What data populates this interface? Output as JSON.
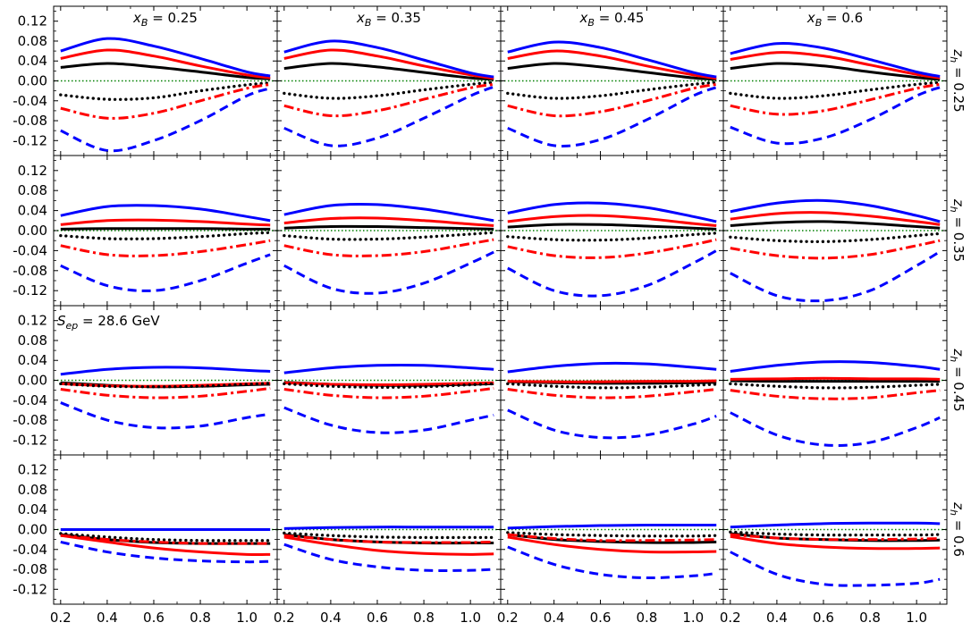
{
  "chart_data": {
    "type": "line",
    "grid": false,
    "layout": "4x4 grid of panels; columns x_B, rows z_h; shared x and y axes",
    "xlim": [
      0.17,
      1.13
    ],
    "ylim": [
      -0.15,
      0.15
    ],
    "x_ticks": [
      "0.2",
      "0.4",
      "0.6",
      "0.8",
      "1.0"
    ],
    "y_ticks": [
      "0.12",
      "0.08",
      "0.04",
      "0.00",
      "-0.04",
      "-0.08",
      "-0.12"
    ],
    "x_ticks_values": [
      0.2,
      0.4,
      0.6,
      0.8,
      1.0
    ],
    "y_ticks_values": [
      0.12,
      0.08,
      0.04,
      0.0,
      -0.04,
      -0.08,
      -0.12
    ],
    "col_labels": [
      {
        "sym": "x",
        "sub": "B",
        "val": " = 0.25"
      },
      {
        "sym": "x",
        "sub": "B",
        "val": " = 0.35"
      },
      {
        "sym": "x",
        "sub": "B",
        "val": " = 0.45"
      },
      {
        "sym": "x",
        "sub": "B",
        "val": " = 0.6"
      }
    ],
    "row_labels": [
      {
        "sym": "z",
        "sub": "h",
        "val": " = 0.25"
      },
      {
        "sym": "z",
        "sub": "h",
        "val": " = 0.35"
      },
      {
        "sym": "z",
        "sub": "h",
        "val": " = 0.45"
      },
      {
        "sym": "z",
        "sub": "h",
        "val": " = 0.6"
      }
    ],
    "annotation": {
      "sym": "S",
      "sub": "ep",
      "val": " = 28.6 GeV",
      "panel": [
        2,
        0
      ]
    },
    "zero_line": {
      "color": "#008000",
      "style": "dotted"
    },
    "series_styles": [
      {
        "key": "black_solid",
        "color": "#000000",
        "dash": "solid"
      },
      {
        "key": "red_solid",
        "color": "#ff0000",
        "dash": "solid"
      },
      {
        "key": "blue_solid",
        "color": "#0000ff",
        "dash": "solid"
      },
      {
        "key": "black_dotted",
        "color": "#000000",
        "dash": "dotted"
      },
      {
        "key": "red_dashdot",
        "color": "#ff0000",
        "dash": "dashdot"
      },
      {
        "key": "blue_dashed",
        "color": "#0000ff",
        "dash": "dashed"
      }
    ],
    "x": [
      0.2,
      0.4,
      0.6,
      0.8,
      1.0,
      1.1
    ],
    "panels": [
      [
        {
          "black_solid": [
            0.027,
            0.035,
            0.028,
            0.018,
            0.007,
            0.004
          ],
          "red_solid": [
            0.045,
            0.062,
            0.05,
            0.03,
            0.012,
            0.006
          ],
          "blue_solid": [
            0.06,
            0.085,
            0.07,
            0.045,
            0.018,
            0.01
          ],
          "black_dotted": [
            -0.028,
            -0.037,
            -0.034,
            -0.02,
            -0.008,
            -0.004
          ],
          "red_dashdot": [
            -0.055,
            -0.075,
            -0.065,
            -0.04,
            -0.015,
            -0.007
          ],
          "blue_dashed": [
            -0.1,
            -0.14,
            -0.12,
            -0.08,
            -0.03,
            -0.015
          ]
        },
        {
          "black_solid": [
            0.025,
            0.035,
            0.028,
            0.017,
            0.006,
            0.003
          ],
          "red_solid": [
            0.045,
            0.062,
            0.05,
            0.03,
            0.012,
            0.005
          ],
          "blue_solid": [
            0.058,
            0.08,
            0.067,
            0.042,
            0.016,
            0.008
          ],
          "black_dotted": [
            -0.025,
            -0.035,
            -0.03,
            -0.018,
            -0.007,
            -0.003
          ],
          "red_dashdot": [
            -0.05,
            -0.07,
            -0.06,
            -0.037,
            -0.014,
            -0.007
          ],
          "blue_dashed": [
            -0.095,
            -0.13,
            -0.115,
            -0.075,
            -0.03,
            -0.012
          ]
        },
        {
          "black_solid": [
            0.025,
            0.035,
            0.028,
            0.017,
            0.006,
            0.003
          ],
          "red_solid": [
            0.045,
            0.06,
            0.05,
            0.03,
            0.012,
            0.005
          ],
          "blue_solid": [
            0.058,
            0.078,
            0.067,
            0.043,
            0.017,
            0.008
          ],
          "black_dotted": [
            -0.025,
            -0.035,
            -0.03,
            -0.018,
            -0.007,
            -0.003
          ],
          "red_dashdot": [
            -0.05,
            -0.07,
            -0.062,
            -0.04,
            -0.015,
            -0.007
          ],
          "blue_dashed": [
            -0.095,
            -0.13,
            -0.118,
            -0.078,
            -0.03,
            -0.013
          ]
        },
        {
          "black_solid": [
            0.025,
            0.035,
            0.03,
            0.018,
            0.007,
            0.003
          ],
          "red_solid": [
            0.043,
            0.057,
            0.05,
            0.032,
            0.013,
            0.006
          ],
          "blue_solid": [
            0.055,
            0.075,
            0.066,
            0.043,
            0.018,
            0.009
          ],
          "black_dotted": [
            -0.025,
            -0.035,
            -0.03,
            -0.018,
            -0.007,
            -0.003
          ],
          "red_dashdot": [
            -0.05,
            -0.067,
            -0.06,
            -0.038,
            -0.015,
            -0.007
          ],
          "blue_dashed": [
            -0.093,
            -0.125,
            -0.115,
            -0.078,
            -0.03,
            -0.013
          ]
        }
      ],
      [
        {
          "black_solid": [
            0.003,
            0.004,
            0.004,
            0.004,
            0.003,
            0.003
          ],
          "red_solid": [
            0.012,
            0.02,
            0.021,
            0.018,
            0.013,
            0.011
          ],
          "blue_solid": [
            0.03,
            0.048,
            0.05,
            0.043,
            0.028,
            0.02
          ],
          "black_dotted": [
            -0.01,
            -0.016,
            -0.016,
            -0.012,
            -0.006,
            -0.004
          ],
          "red_dashdot": [
            -0.03,
            -0.048,
            -0.05,
            -0.042,
            -0.028,
            -0.02
          ],
          "blue_dashed": [
            -0.07,
            -0.11,
            -0.12,
            -0.1,
            -0.065,
            -0.048
          ]
        },
        {
          "black_solid": [
            0.005,
            0.008,
            0.008,
            0.006,
            0.004,
            0.003
          ],
          "red_solid": [
            0.015,
            0.024,
            0.025,
            0.02,
            0.013,
            0.01
          ],
          "blue_solid": [
            0.032,
            0.05,
            0.052,
            0.043,
            0.028,
            0.02
          ],
          "black_dotted": [
            -0.01,
            -0.017,
            -0.017,
            -0.013,
            -0.007,
            -0.004
          ],
          "red_dashdot": [
            -0.03,
            -0.048,
            -0.05,
            -0.042,
            -0.026,
            -0.018
          ],
          "blue_dashed": [
            -0.07,
            -0.115,
            -0.125,
            -0.105,
            -0.065,
            -0.043
          ]
        },
        {
          "black_solid": [
            0.007,
            0.012,
            0.012,
            0.009,
            0.005,
            0.003
          ],
          "red_solid": [
            0.018,
            0.028,
            0.03,
            0.024,
            0.014,
            0.01
          ],
          "blue_solid": [
            0.035,
            0.052,
            0.055,
            0.046,
            0.028,
            0.018
          ],
          "black_dotted": [
            -0.012,
            -0.018,
            -0.019,
            -0.015,
            -0.008,
            -0.005
          ],
          "red_dashdot": [
            -0.032,
            -0.05,
            -0.054,
            -0.045,
            -0.028,
            -0.018
          ],
          "blue_dashed": [
            -0.075,
            -0.12,
            -0.13,
            -0.11,
            -0.065,
            -0.04
          ]
        },
        {
          "black_solid": [
            0.01,
            0.016,
            0.018,
            0.014,
            0.008,
            0.005
          ],
          "red_solid": [
            0.023,
            0.034,
            0.036,
            0.029,
            0.018,
            0.012
          ],
          "blue_solid": [
            0.038,
            0.055,
            0.06,
            0.05,
            0.03,
            0.018
          ],
          "black_dotted": [
            -0.013,
            -0.02,
            -0.022,
            -0.018,
            -0.01,
            -0.006
          ],
          "red_dashdot": [
            -0.035,
            -0.05,
            -0.055,
            -0.048,
            -0.03,
            -0.02
          ],
          "blue_dashed": [
            -0.085,
            -0.13,
            -0.14,
            -0.12,
            -0.07,
            -0.042
          ]
        }
      ],
      [
        {
          "black_solid": [
            -0.005,
            -0.01,
            -0.013,
            -0.012,
            -0.009,
            -0.008
          ],
          "red_solid": [
            -0.007,
            -0.011,
            -0.012,
            -0.01,
            -0.007,
            -0.006
          ],
          "blue_solid": [
            0.012,
            0.022,
            0.026,
            0.025,
            0.02,
            0.018
          ],
          "black_dotted": [
            -0.007,
            -0.012,
            -0.013,
            -0.012,
            -0.008,
            -0.006
          ],
          "red_dashdot": [
            -0.018,
            -0.03,
            -0.035,
            -0.032,
            -0.022,
            -0.016
          ],
          "blue_dashed": [
            -0.045,
            -0.08,
            -0.095,
            -0.092,
            -0.075,
            -0.068
          ]
        },
        {
          "black_solid": [
            -0.004,
            -0.008,
            -0.01,
            -0.01,
            -0.008,
            -0.007
          ],
          "red_solid": [
            -0.005,
            -0.008,
            -0.009,
            -0.008,
            -0.006,
            -0.005
          ],
          "blue_solid": [
            0.015,
            0.025,
            0.03,
            0.03,
            0.025,
            0.022
          ],
          "black_dotted": [
            -0.007,
            -0.012,
            -0.014,
            -0.013,
            -0.009,
            -0.007
          ],
          "red_dashdot": [
            -0.018,
            -0.03,
            -0.035,
            -0.032,
            -0.022,
            -0.016
          ],
          "blue_dashed": [
            -0.055,
            -0.09,
            -0.105,
            -0.1,
            -0.08,
            -0.07
          ]
        },
        {
          "black_solid": [
            -0.003,
            -0.005,
            -0.006,
            -0.006,
            -0.005,
            -0.004
          ],
          "red_solid": [
            -0.002,
            -0.003,
            -0.003,
            -0.002,
            -0.002,
            -0.001
          ],
          "blue_solid": [
            0.017,
            0.028,
            0.034,
            0.033,
            0.026,
            0.022
          ],
          "black_dotted": [
            -0.007,
            -0.012,
            -0.015,
            -0.014,
            -0.01,
            -0.008
          ],
          "red_dashdot": [
            -0.018,
            -0.03,
            -0.035,
            -0.032,
            -0.023,
            -0.018
          ],
          "blue_dashed": [
            -0.06,
            -0.1,
            -0.115,
            -0.11,
            -0.088,
            -0.072
          ]
        },
        {
          "black_solid": [
            -0.001,
            -0.002,
            -0.002,
            -0.002,
            -0.002,
            -0.002
          ],
          "red_solid": [
            0.002,
            0.003,
            0.004,
            0.003,
            0.003,
            0.002
          ],
          "blue_solid": [
            0.018,
            0.03,
            0.037,
            0.036,
            0.028,
            0.022
          ],
          "black_dotted": [
            -0.007,
            -0.012,
            -0.015,
            -0.014,
            -0.01,
            -0.008
          ],
          "red_dashdot": [
            -0.02,
            -0.032,
            -0.037,
            -0.035,
            -0.025,
            -0.02
          ],
          "blue_dashed": [
            -0.065,
            -0.11,
            -0.13,
            -0.125,
            -0.095,
            -0.075
          ]
        }
      ],
      [
        {
          "black_solid": [
            -0.01,
            -0.02,
            -0.026,
            -0.028,
            -0.028,
            -0.028
          ],
          "red_solid": [
            -0.012,
            -0.025,
            -0.037,
            -0.045,
            -0.05,
            -0.05
          ],
          "blue_solid": [
            0.0,
            0.0,
            0.0,
            0.0,
            0.0,
            0.0
          ],
          "black_dotted": [
            -0.008,
            -0.015,
            -0.02,
            -0.022,
            -0.022,
            -0.022
          ],
          "red_dashdot": [
            -0.012,
            -0.02,
            -0.025,
            -0.028,
            -0.028,
            -0.028
          ],
          "blue_dashed": [
            -0.025,
            -0.045,
            -0.057,
            -0.063,
            -0.065,
            -0.064
          ]
        },
        {
          "black_solid": [
            -0.01,
            -0.02,
            -0.025,
            -0.027,
            -0.027,
            -0.027
          ],
          "red_solid": [
            -0.015,
            -0.03,
            -0.042,
            -0.048,
            -0.05,
            -0.049
          ],
          "blue_solid": [
            0.002,
            0.004,
            0.005,
            0.005,
            0.005,
            0.005
          ],
          "black_dotted": [
            -0.007,
            -0.012,
            -0.015,
            -0.016,
            -0.016,
            -0.016
          ],
          "red_dashdot": [
            -0.012,
            -0.02,
            -0.025,
            -0.026,
            -0.026,
            -0.025
          ],
          "blue_dashed": [
            -0.03,
            -0.06,
            -0.075,
            -0.082,
            -0.082,
            -0.08
          ]
        },
        {
          "black_solid": [
            -0.01,
            -0.02,
            -0.024,
            -0.026,
            -0.026,
            -0.025
          ],
          "red_solid": [
            -0.015,
            -0.03,
            -0.04,
            -0.045,
            -0.045,
            -0.044
          ],
          "blue_solid": [
            0.003,
            0.006,
            0.008,
            0.009,
            0.009,
            0.009
          ],
          "black_dotted": [
            -0.006,
            -0.01,
            -0.012,
            -0.013,
            -0.013,
            -0.012
          ],
          "red_dashdot": [
            -0.01,
            -0.018,
            -0.022,
            -0.022,
            -0.021,
            -0.02
          ],
          "blue_dashed": [
            -0.035,
            -0.07,
            -0.09,
            -0.097,
            -0.093,
            -0.088
          ]
        },
        {
          "black_solid": [
            -0.008,
            -0.017,
            -0.02,
            -0.022,
            -0.022,
            -0.021
          ],
          "red_solid": [
            -0.014,
            -0.028,
            -0.035,
            -0.038,
            -0.038,
            -0.037
          ],
          "blue_solid": [
            0.005,
            0.009,
            0.012,
            0.013,
            0.013,
            0.012
          ],
          "black_dotted": [
            -0.005,
            -0.009,
            -0.011,
            -0.011,
            -0.011,
            -0.01
          ],
          "red_dashdot": [
            -0.01,
            -0.017,
            -0.02,
            -0.02,
            -0.019,
            -0.018
          ],
          "blue_dashed": [
            -0.045,
            -0.09,
            -0.11,
            -0.112,
            -0.108,
            -0.1
          ]
        }
      ]
    ]
  }
}
